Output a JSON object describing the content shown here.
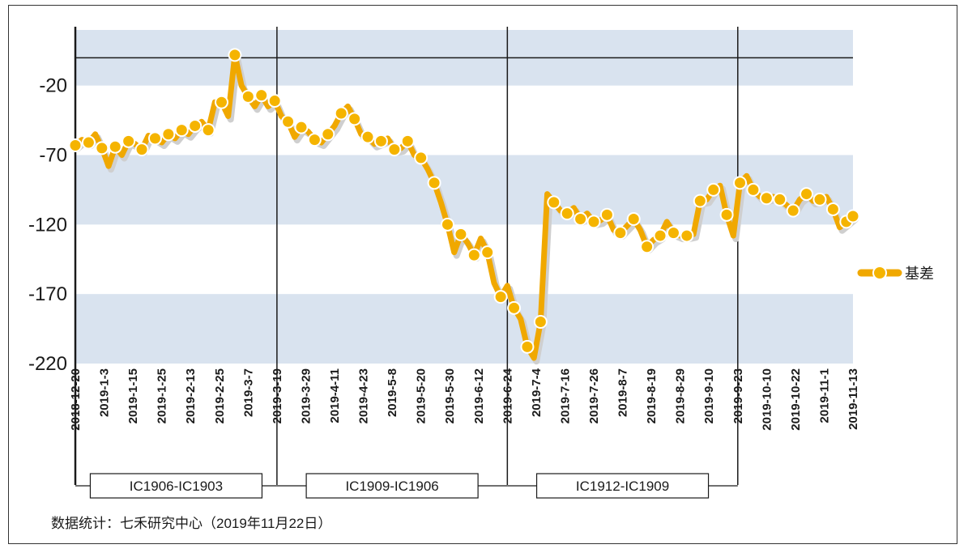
{
  "chart_data": {
    "type": "line",
    "title": "",
    "xlabel": "",
    "ylabel": "",
    "ylim": [
      -220,
      20
    ],
    "y_ticks": [
      -20,
      -70,
      -120,
      -170,
      -220
    ],
    "band_ranges": [
      [
        -220,
        -170
      ],
      [
        -120,
        -70
      ],
      [
        -20,
        20
      ]
    ],
    "reference_line": 0,
    "colors": {
      "line": "#f0a800",
      "marker_fill": "#f5b400",
      "marker_edge": "#ffffff",
      "band": "#d9e3ef"
    },
    "legend": {
      "label": "基差",
      "position": "right"
    },
    "x_tick_labels": [
      "2018-12-20",
      "2019-1-3",
      "2019-1-15",
      "2019-1-25",
      "2019-2-13",
      "2019-2-25",
      "2019-3-7",
      "2019-3-19",
      "2019-3-29",
      "2019-4-11",
      "2019-4-23",
      "2019-5-8",
      "2019-5-20",
      "2019-5-30",
      "2019-6-12",
      "2019-6-24",
      "2019-7-4",
      "2019-7-16",
      "2019-7-26",
      "2019-8-7",
      "2019-8-19",
      "2019-8-29",
      "2019-9-10",
      "2019-9-23",
      "2019-10-10",
      "2019-10-22",
      "2019-11-1",
      "2019-11-13"
    ],
    "contract_switch_dates": [
      "2018-12-20",
      "2019-3-19",
      "2019-6-24",
      "2019-9-23"
    ],
    "contracts": [
      {
        "label": "IC1906-IC1903"
      },
      {
        "label": "IC1909-IC1906"
      },
      {
        "label": "IC1912-IC1909"
      }
    ],
    "series": [
      {
        "name": "基差",
        "values": [
          -63,
          -59,
          -61,
          -55,
          -65,
          -78,
          -64,
          -70,
          -60,
          -62,
          -66,
          -56,
          -58,
          -61,
          -55,
          -58,
          -52,
          -55,
          -49,
          -46,
          -52,
          -32,
          -32,
          -42,
          2,
          -20,
          -28,
          -35,
          -27,
          -35,
          -31,
          -42,
          -46,
          -57,
          -50,
          -53,
          -59,
          -61,
          -55,
          -49,
          -40,
          -35,
          -44,
          -55,
          -57,
          -62,
          -60,
          -58,
          -66,
          -65,
          -60,
          -70,
          -72,
          -80,
          -90,
          -104,
          -120,
          -140,
          -127,
          -133,
          -142,
          -130,
          -140,
          -162,
          -172,
          -164,
          -180,
          -188,
          -208,
          -216,
          -190,
          -98,
          -104,
          -110,
          -112,
          -108,
          -116,
          -112,
          -118,
          -117,
          -113,
          -124,
          -126,
          -121,
          -116,
          -124,
          -136,
          -131,
          -128,
          -118,
          -126,
          -128,
          -128,
          -127,
          -103,
          -102,
          -95,
          -92,
          -113,
          -128,
          -90,
          -85,
          -95,
          -100,
          -101,
          -100,
          -102,
          -106,
          -110,
          -102,
          -98,
          -103,
          -102,
          -100,
          -109,
          -122,
          -118,
          -114
        ]
      }
    ]
  },
  "source_note": "数据统计：七禾研究中心（2019年11月22日）"
}
